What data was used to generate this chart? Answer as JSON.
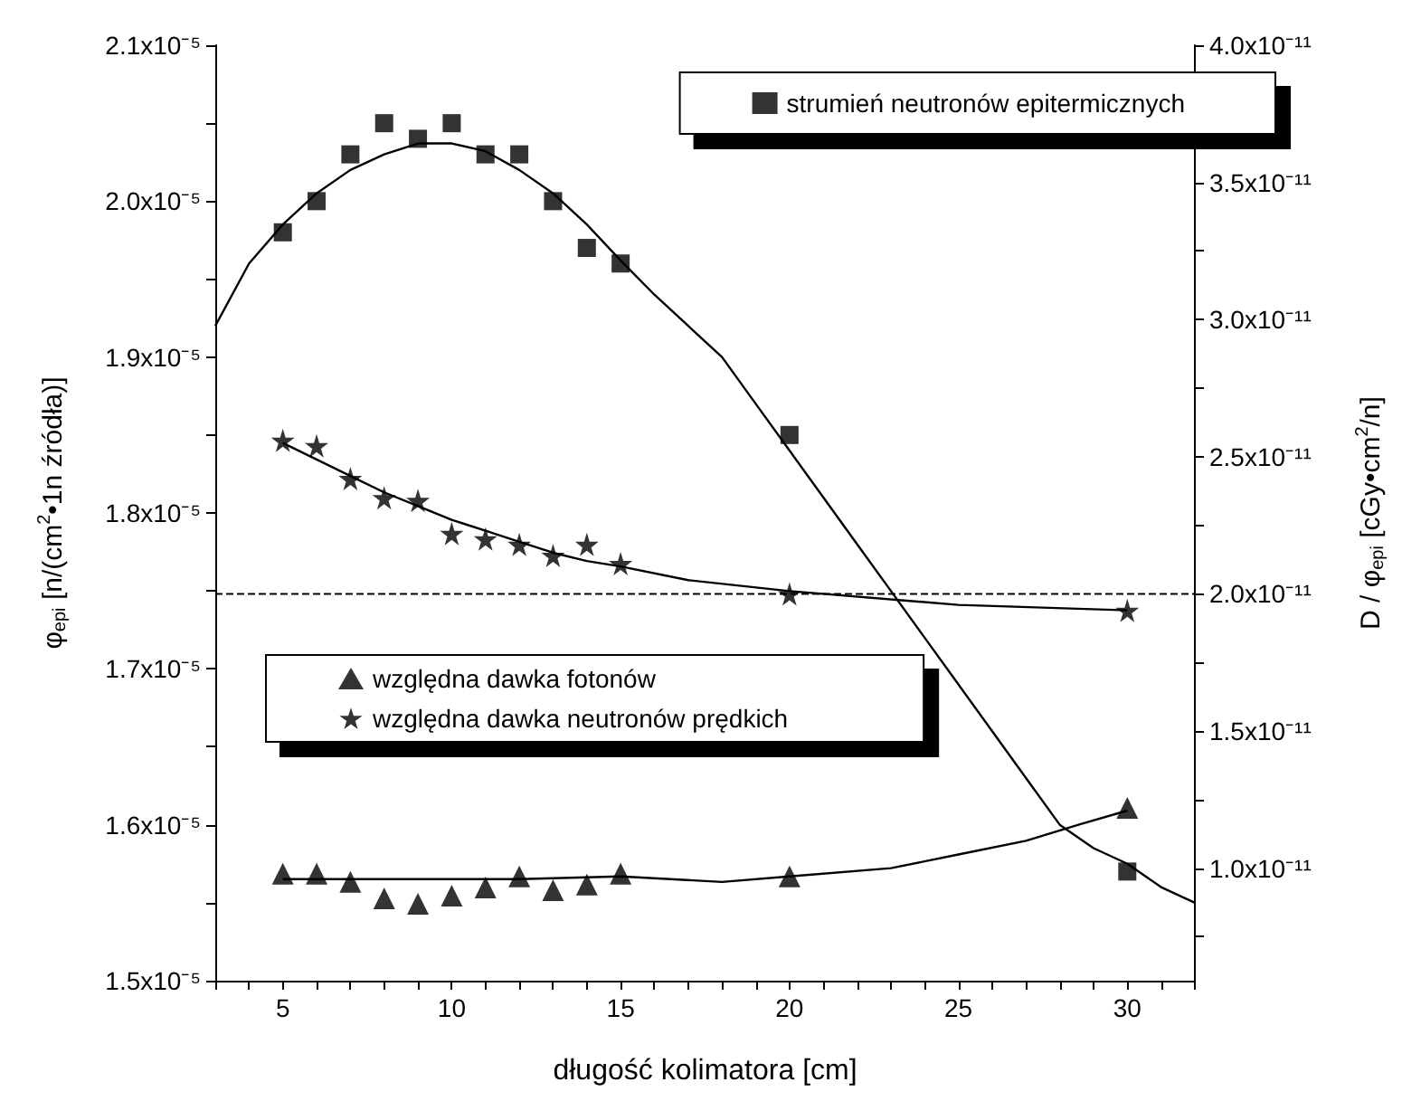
{
  "chart_data": {
    "type": "scatter",
    "xlabel": "długość kolimatora [cm]",
    "ylabel": "φ$_{epi}$ [n/(cm$^{2}$•1n źródła)]",
    "y2label": "D / φ$_{epi}$ [cGy•cm$^{2}$/n]",
    "x": [
      5,
      6,
      7,
      8,
      9,
      10,
      11,
      12,
      13,
      14,
      15,
      20,
      30
    ],
    "series": [
      {
        "name": "strumień neutronów epitermicznych",
        "color": "#000000",
        "marker": "square",
        "values": [
          1.98e-05,
          2e-05,
          2.03e-05,
          2.05e-05,
          2.04e-05,
          2.05e-05,
          2.03e-05,
          2.03e-05,
          2e-05,
          1.97e-05,
          1.96e-05,
          1.85e-05,
          1.57e-05
        ]
      },
      {
        "name": "względna dawka fotonów",
        "color": "#000000",
        "marker": "triangle",
        "axis": "y2",
        "values": [
          9.8e-12,
          9.8e-12,
          9.5e-12,
          8.9e-12,
          8.7e-12,
          9e-12,
          9.3e-12,
          9.7e-12,
          9.2e-12,
          9.4e-12,
          9.8e-12,
          9.7e-12,
          1.22e-11
        ]
      },
      {
        "name": "względna dawka neutronów prędkich",
        "color": "#000000",
        "marker": "star",
        "axis": "y2",
        "values": [
          2.56e-11,
          2.54e-11,
          2.42e-11,
          2.35e-11,
          2.34e-11,
          2.22e-11,
          2.2e-11,
          2.18e-11,
          2.14e-11,
          2.18e-11,
          2.11e-11,
          2e-11,
          1.94e-11
        ]
      },
      {
        "type": "line",
        "color": "#000000",
        "marker": "none",
        "x": [
          3,
          4,
          5,
          6,
          7,
          8,
          9,
          10,
          11,
          12,
          13,
          14,
          15,
          16,
          17,
          18,
          19,
          20,
          21,
          22,
          23,
          24,
          25,
          26,
          27,
          28,
          29,
          30,
          31,
          32
        ],
        "values": [
          1.92e-05,
          1.96e-05,
          1.985e-05,
          2.005e-05,
          2.02e-05,
          2.03e-05,
          2.037e-05,
          2.037e-05,
          2.032e-05,
          2.02e-05,
          2.005e-05,
          1.985e-05,
          1.962e-05,
          1.94e-05,
          1.92e-05,
          1.9e-05,
          1.87e-05,
          1.84e-05,
          1.81e-05,
          1.78e-05,
          1.75e-05,
          1.72e-05,
          1.69e-05,
          1.66e-05,
          1.63e-05,
          1.6e-05,
          1.585e-05,
          1.575e-05,
          1.56e-05,
          1.55e-05
        ]
      },
      {
        "type": "line",
        "color": "#000000",
        "marker": "none",
        "axis": "y2",
        "x": [
          5,
          7,
          10,
          12,
          15,
          18,
          20,
          23,
          25,
          27,
          28.6,
          30
        ],
        "values": [
          9.6e-12,
          9.6e-12,
          9.6e-12,
          9.6e-12,
          9.7e-12,
          9.5e-12,
          9.7e-12,
          1e-11,
          1.05e-11,
          1.1e-11,
          1.16e-11,
          1.21e-11
        ]
      },
      {
        "type": "line",
        "color": "#000000",
        "marker": "none",
        "axis": "y2",
        "x": [
          5,
          6,
          7,
          8,
          9,
          10,
          11,
          12,
          13,
          14,
          15,
          17,
          20,
          25,
          30
        ],
        "values": [
          2.55e-11,
          2.49e-11,
          2.43e-11,
          2.37e-11,
          2.32e-11,
          2.27e-11,
          2.23e-11,
          2.19e-11,
          2.15e-11,
          2.12e-11,
          2.1e-11,
          2.05e-11,
          2.01e-11,
          1.96e-11,
          1.94e-11
        ]
      }
    ],
    "xlim": [
      3,
      32
    ],
    "xticks": [
      {
        "value": 3,
        "label": null
      },
      {
        "value": 4,
        "label": null
      },
      5,
      {
        "value": 6,
        "label": null
      },
      {
        "value": 7,
        "label": null
      },
      {
        "value": 8,
        "label": null
      },
      {
        "value": 9,
        "label": null
      },
      10,
      {
        "value": 11,
        "label": null
      },
      {
        "value": 12,
        "label": null
      },
      {
        "value": 13,
        "label": null
      },
      {
        "value": 14,
        "label": null
      },
      15,
      {
        "value": 16,
        "label": null
      },
      {
        "value": 17,
        "label": null
      },
      {
        "value": 18,
        "label": null
      },
      {
        "value": 19,
        "label": null
      },
      20,
      {
        "value": 21,
        "label": null
      },
      {
        "value": 22,
        "label": null
      },
      {
        "value": 23,
        "label": null
      },
      {
        "value": 24,
        "label": null
      },
      25,
      {
        "value": 26,
        "label": null
      },
      {
        "value": 27,
        "label": null
      },
      {
        "value": 28,
        "label": null
      },
      {
        "value": 29,
        "label": null
      },
      30,
      {
        "value": 31,
        "label": null
      },
      {
        "value": 32,
        "label": null
      }
    ],
    "ylim": [
      1.5e-05,
      2.1e-05
    ],
    "yticks": [
      {
        "value": 1.5e-05,
        "label": "1.5x10⁻⁵"
      },
      {
        "value": 1.55e-05,
        "label": null
      },
      {
        "value": 1.6e-05,
        "label": "1.6x10⁻⁵"
      },
      {
        "value": 1.65e-05,
        "label": null
      },
      {
        "value": 1.7e-05,
        "label": "1.7x10⁻⁵"
      },
      {
        "value": 1.75e-05,
        "label": null
      },
      {
        "value": 1.8e-05,
        "label": "1.8x10⁻⁵"
      },
      {
        "value": 1.85e-05,
        "label": null
      },
      {
        "value": 1.9e-05,
        "label": "1.9x10⁻⁵"
      },
      {
        "value": 1.95e-05,
        "label": null
      },
      {
        "value": 2e-05,
        "label": "2.0x10⁻⁵"
      },
      {
        "value": 2.05e-05,
        "label": null
      },
      {
        "value": 2.1e-05,
        "label": "2.1x10⁻⁵"
      }
    ],
    "y2lim": [
      5.9e-12,
      4e-11
    ],
    "y2ticks": [
      {
        "value": 7.5e-12,
        "label": null
      },
      {
        "value": 1e-11,
        "label": "1.0x10⁻¹¹"
      },
      {
        "value": 1.25e-11,
        "label": null
      },
      {
        "value": 1.5e-11,
        "label": "1.5x10⁻¹¹"
      },
      {
        "value": 1.75e-11,
        "label": null
      },
      {
        "value": 2e-11,
        "label": "2.0x10⁻¹¹"
      },
      {
        "value": 2.25e-11,
        "label": null
      },
      {
        "value": 2.5e-11,
        "label": "2.5x10⁻¹¹"
      },
      {
        "value": 2.75e-11,
        "label": null
      },
      {
        "value": 3e-11,
        "label": "3.0x10⁻¹¹"
      },
      {
        "value": 3.25e-11,
        "label": null
      },
      {
        "value": 3.5e-11,
        "label": "3.5x10⁻¹¹"
      },
      {
        "value": 3.75e-11,
        "label": null
      },
      {
        "value": 4e-11,
        "label": "4.0x10⁻¹¹"
      }
    ],
    "ref_lines": [
      {
        "axis": "y2",
        "value": 2e-11,
        "line_style": "dashed",
        "color": "#000000"
      }
    ],
    "legend": "top right",
    "grid": false
  }
}
